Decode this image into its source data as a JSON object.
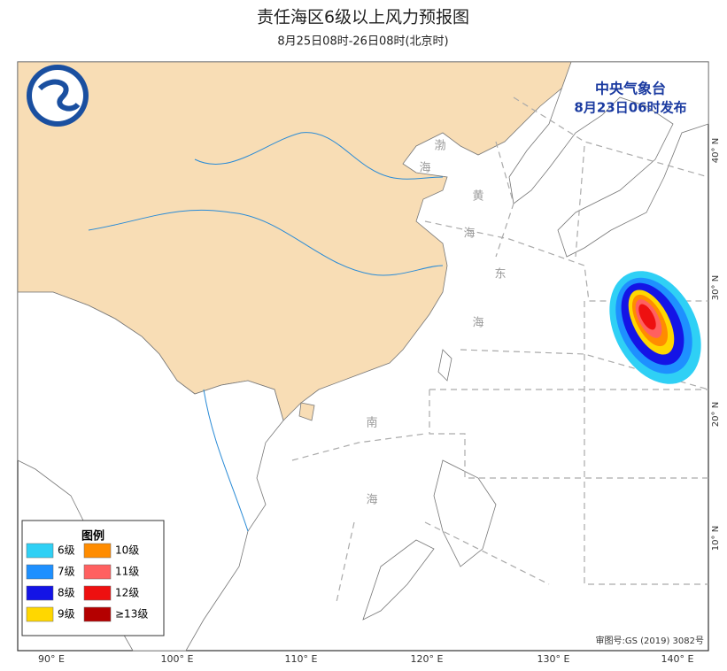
{
  "header": {
    "title": "责任海区6级以上风力预报图",
    "subtitle": "8月25日08时-26日08时(北京时)"
  },
  "issuer": {
    "name": "中央气象台",
    "time": "8月23日06时发布"
  },
  "sea_labels": [
    "渤",
    "海",
    "黄",
    "海",
    "东",
    "海",
    "南",
    "海"
  ],
  "lon_labels": [
    "90° E",
    "100° E",
    "110° E",
    "120° E",
    "130° E",
    "140° E"
  ],
  "lat_labels": [
    "40° N",
    "30° N",
    "20° N",
    "10° N"
  ],
  "legend": {
    "title": "图例",
    "items": [
      {
        "label": "6级",
        "color": "#2fd0f5"
      },
      {
        "label": "10级",
        "color": "#ff8c00"
      },
      {
        "label": "7级",
        "color": "#1e90ff"
      },
      {
        "label": "11级",
        "color": "#ff6060"
      },
      {
        "label": "8级",
        "color": "#1414e6"
      },
      {
        "label": "12级",
        "color": "#ee1010"
      },
      {
        "label": "9级",
        "color": "#ffd700"
      },
      {
        "label": "≥13级",
        "color": "#b40000"
      }
    ]
  },
  "credit": "审图号:GS (2019) 3082号"
}
